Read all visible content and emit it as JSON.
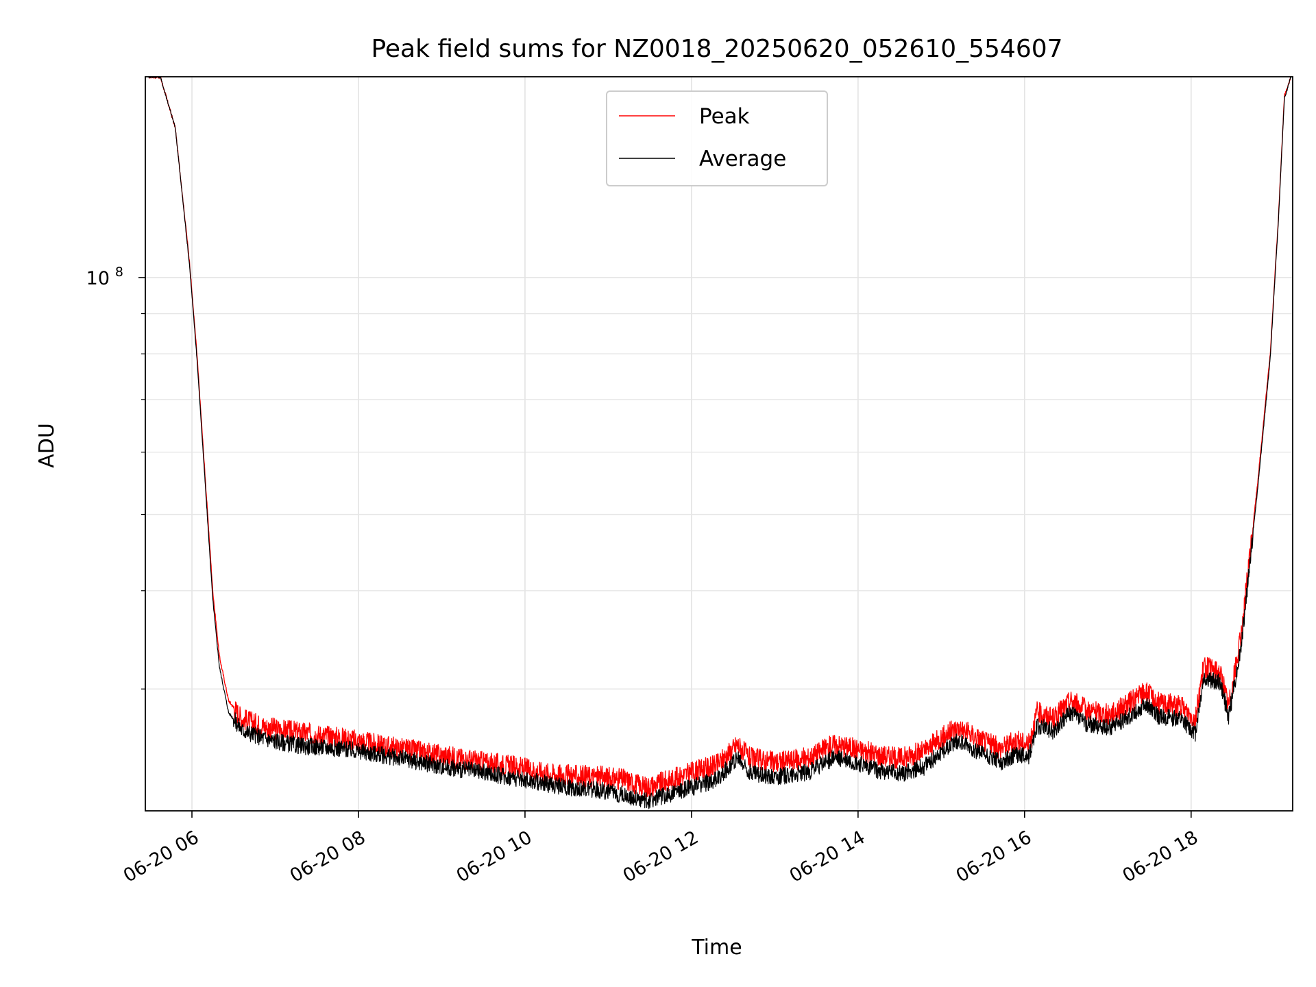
{
  "chart_data": {
    "type": "line",
    "title": "Peak field sums for NZ0018_20250620_052610_554607",
    "xlabel": "Time",
    "ylabel": "ADU",
    "y_scale": "log",
    "x_unit": "hours (2025-06-20, local)",
    "xlim": [
      5.44,
      19.22
    ],
    "ylim": [
      21000000,
      180000000
    ],
    "x_ticks": [
      {
        "value": 6,
        "label": "06-20 06"
      },
      {
        "value": 8,
        "label": "06-20 08"
      },
      {
        "value": 10,
        "label": "06-20 10"
      },
      {
        "value": 12,
        "label": "06-20 12"
      },
      {
        "value": 14,
        "label": "06-20 14"
      },
      {
        "value": 16,
        "label": "06-20 16"
      },
      {
        "value": 18,
        "label": "06-20 18"
      }
    ],
    "y_major_ticks": [
      {
        "value": 100000000,
        "base": "10",
        "exp": "8"
      }
    ],
    "y_minor_ticks": [
      30000000,
      40000000,
      50000000,
      60000000,
      70000000,
      80000000,
      90000000,
      200000000
    ],
    "grid": true,
    "legend": {
      "placement": "top-center"
    },
    "series": [
      {
        "name": "Peak",
        "color": "#ff0000",
        "x": [
          5.48,
          5.62,
          5.8,
          5.97,
          6.06,
          6.13,
          6.2,
          6.25,
          6.33,
          6.44,
          6.6,
          6.9,
          7.3,
          7.8,
          8.2,
          8.6,
          9.0,
          9.5,
          9.9,
          10.2,
          10.5,
          10.9,
          11.2,
          11.45,
          11.7,
          12.0,
          12.3,
          12.55,
          12.7,
          13.0,
          13.4,
          13.7,
          13.9,
          14.2,
          14.5,
          14.8,
          15.0,
          15.2,
          15.5,
          15.7,
          15.9,
          16.05,
          16.15,
          16.35,
          16.55,
          16.75,
          17.0,
          17.2,
          17.45,
          17.6,
          17.85,
          18.05,
          18.15,
          18.35,
          18.45,
          18.6,
          18.8,
          18.95,
          19.05,
          19.12,
          19.2
        ],
        "y": [
          180000000,
          180000000,
          155000000,
          105000000,
          80000000,
          62000000,
          48000000,
          40000000,
          33000000,
          29000000,
          27500000,
          26800000,
          26400000,
          26000000,
          25500000,
          25100000,
          24700000,
          24200000,
          23900000,
          23500000,
          23300000,
          23200000,
          23000000,
          22500000,
          22900000,
          23500000,
          24000000,
          25500000,
          24500000,
          24200000,
          24500000,
          25500000,
          25300000,
          24800000,
          24500000,
          25000000,
          26000000,
          26800000,
          25800000,
          25200000,
          25800000,
          25500000,
          28000000,
          27500000,
          29000000,
          28200000,
          27800000,
          28500000,
          29800000,
          28800000,
          28600000,
          27500000,
          32000000,
          31500000,
          28500000,
          35000000,
          55000000,
          80000000,
          120000000,
          170000000,
          180000000
        ]
      },
      {
        "name": "Average",
        "color": "#000000",
        "x": [
          5.48,
          5.62,
          5.8,
          5.97,
          6.06,
          6.13,
          6.2,
          6.25,
          6.33,
          6.44,
          6.6,
          6.9,
          7.3,
          7.8,
          8.2,
          8.6,
          9.0,
          9.5,
          9.9,
          10.2,
          10.5,
          10.9,
          11.2,
          11.45,
          11.7,
          12.0,
          12.3,
          12.55,
          12.7,
          13.0,
          13.4,
          13.7,
          13.9,
          14.2,
          14.5,
          14.8,
          15.0,
          15.2,
          15.5,
          15.7,
          15.9,
          16.05,
          16.15,
          16.35,
          16.55,
          16.75,
          17.0,
          17.2,
          17.45,
          17.6,
          17.85,
          18.05,
          18.15,
          18.35,
          18.45,
          18.6,
          18.8,
          18.95,
          19.05,
          19.12,
          19.2
        ],
        "y": [
          180000000,
          180000000,
          155000000,
          104000000,
          79000000,
          61000000,
          47000000,
          39000000,
          32000000,
          28000000,
          26600000,
          25900000,
          25400000,
          25200000,
          24800000,
          24400000,
          23900000,
          23500000,
          23100000,
          22800000,
          22500000,
          22300000,
          22000000,
          21600000,
          22000000,
          22500000,
          23000000,
          24500000,
          23500000,
          23200000,
          23500000,
          24500000,
          24300000,
          23700000,
          23400000,
          23900000,
          25000000,
          25800000,
          24800000,
          24200000,
          24800000,
          24600000,
          27000000,
          26500000,
          28000000,
          27100000,
          26800000,
          27400000,
          28700000,
          27700000,
          27500000,
          26400000,
          31000000,
          30600000,
          27600000,
          34000000,
          54000000,
          79000000,
          119000000,
          169000000,
          180000000
        ]
      }
    ]
  }
}
